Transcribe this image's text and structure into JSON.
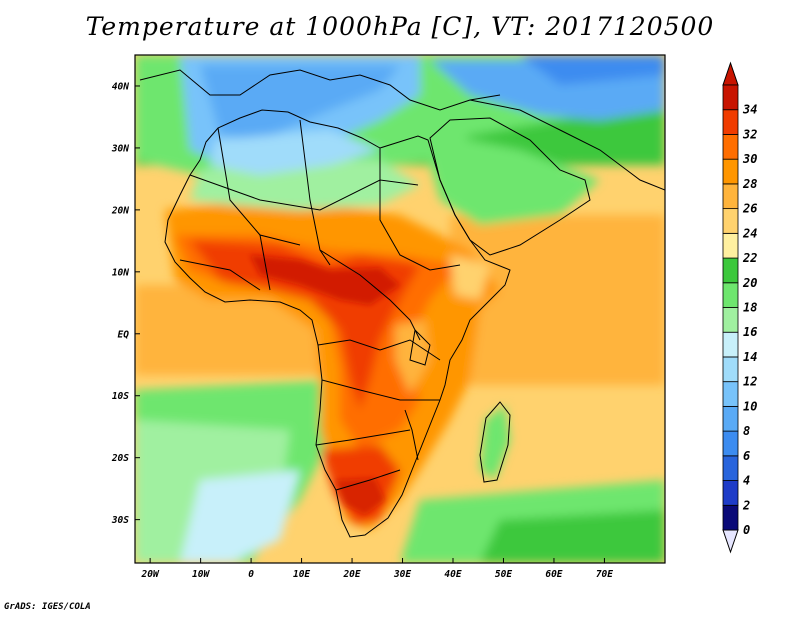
{
  "title": "Temperature at 1000hPa [C], VT: 2017120500",
  "credit": "GrADS: IGES/COLA",
  "map": {
    "lon_range": [
      -23,
      82
    ],
    "lat_range": [
      -37,
      45
    ],
    "x_ticks": [
      {
        "lon": -20,
        "label": "20W"
      },
      {
        "lon": -10,
        "label": "10W"
      },
      {
        "lon": 0,
        "label": "0"
      },
      {
        "lon": 10,
        "label": "10E"
      },
      {
        "lon": 20,
        "label": "20E"
      },
      {
        "lon": 30,
        "label": "30E"
      },
      {
        "lon": 40,
        "label": "40E"
      },
      {
        "lon": 50,
        "label": "50E"
      },
      {
        "lon": 60,
        "label": "60E"
      },
      {
        "lon": 70,
        "label": "70E"
      }
    ],
    "y_ticks": [
      {
        "lat": 40,
        "label": "40N"
      },
      {
        "lat": 30,
        "label": "30N"
      },
      {
        "lat": 20,
        "label": "20N"
      },
      {
        "lat": 10,
        "label": "10N"
      },
      {
        "lat": 0,
        "label": "EQ"
      },
      {
        "lat": -10,
        "label": "10S"
      },
      {
        "lat": -20,
        "label": "20S"
      },
      {
        "lat": -30,
        "label": "30S"
      }
    ]
  },
  "colorbar": {
    "levels": [
      "0",
      "2",
      "4",
      "6",
      "8",
      "10",
      "12",
      "14",
      "16",
      "18",
      "20",
      "22",
      "24",
      "26",
      "28",
      "30",
      "32",
      "34"
    ],
    "colors": [
      "#0a0a78",
      "#1e3cc8",
      "#2864dc",
      "#3c8cf0",
      "#5aaaf5",
      "#78c3fa",
      "#a0dcfa",
      "#c8f0fa",
      "#a0f0a0",
      "#6ee66e",
      "#3cc83c",
      "#fff0a0",
      "#ffd26e",
      "#ffb43c",
      "#ff9600",
      "#ff6e00",
      "#f03c00",
      "#c81400"
    ],
    "under_color": "#e6e6ff",
    "over_color": "#c81400"
  }
}
